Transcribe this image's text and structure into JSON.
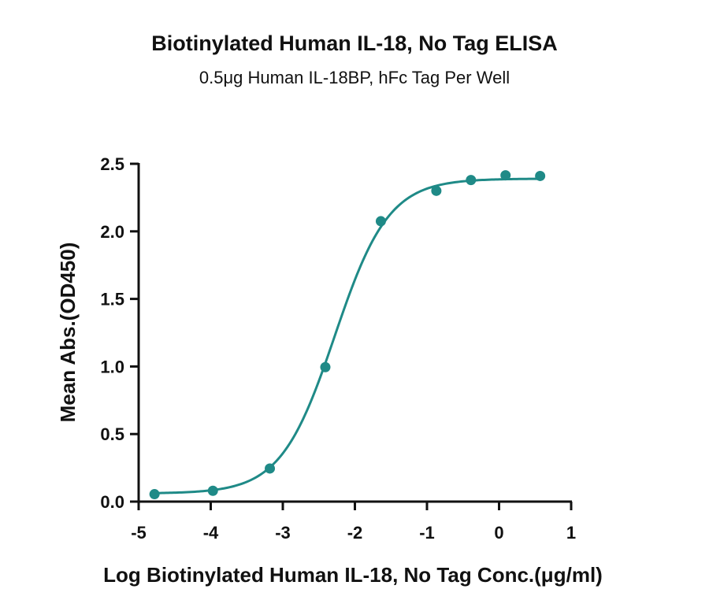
{
  "chart_data": {
    "type": "scatter",
    "title": "Biotinylated Human IL-18, No Tag ELISA",
    "subtitle": "0.5μg Human IL-18BP, hFc Tag Per Well",
    "xlabel": "Log Biotinylated Human IL-18, No Tag Conc.(μg/ml)",
    "ylabel": "Mean Abs.(OD450)",
    "xlim": [
      -5,
      1
    ],
    "ylim": [
      0,
      2.5
    ],
    "x_ticks": [
      "-5",
      "-4",
      "-3",
      "-2",
      "-1",
      "0",
      "1"
    ],
    "y_ticks": [
      "0.0",
      "0.5",
      "1.0",
      "1.5",
      "2.0",
      "2.5"
    ],
    "grid": false,
    "series": [
      {
        "x": [
          -4.78,
          -3.97,
          -3.18,
          -2.41,
          -1.64,
          -0.87,
          -0.39,
          0.09,
          0.57
        ],
        "y": [
          0.055,
          0.08,
          0.245,
          0.995,
          2.075,
          2.3,
          2.38,
          2.415,
          2.41
        ],
        "fit": {
          "model": "4PL",
          "bottom": 0.06,
          "top": 2.39,
          "logEC50": -2.28,
          "hill": 1.16
        },
        "color": "#1f8a87"
      }
    ]
  }
}
